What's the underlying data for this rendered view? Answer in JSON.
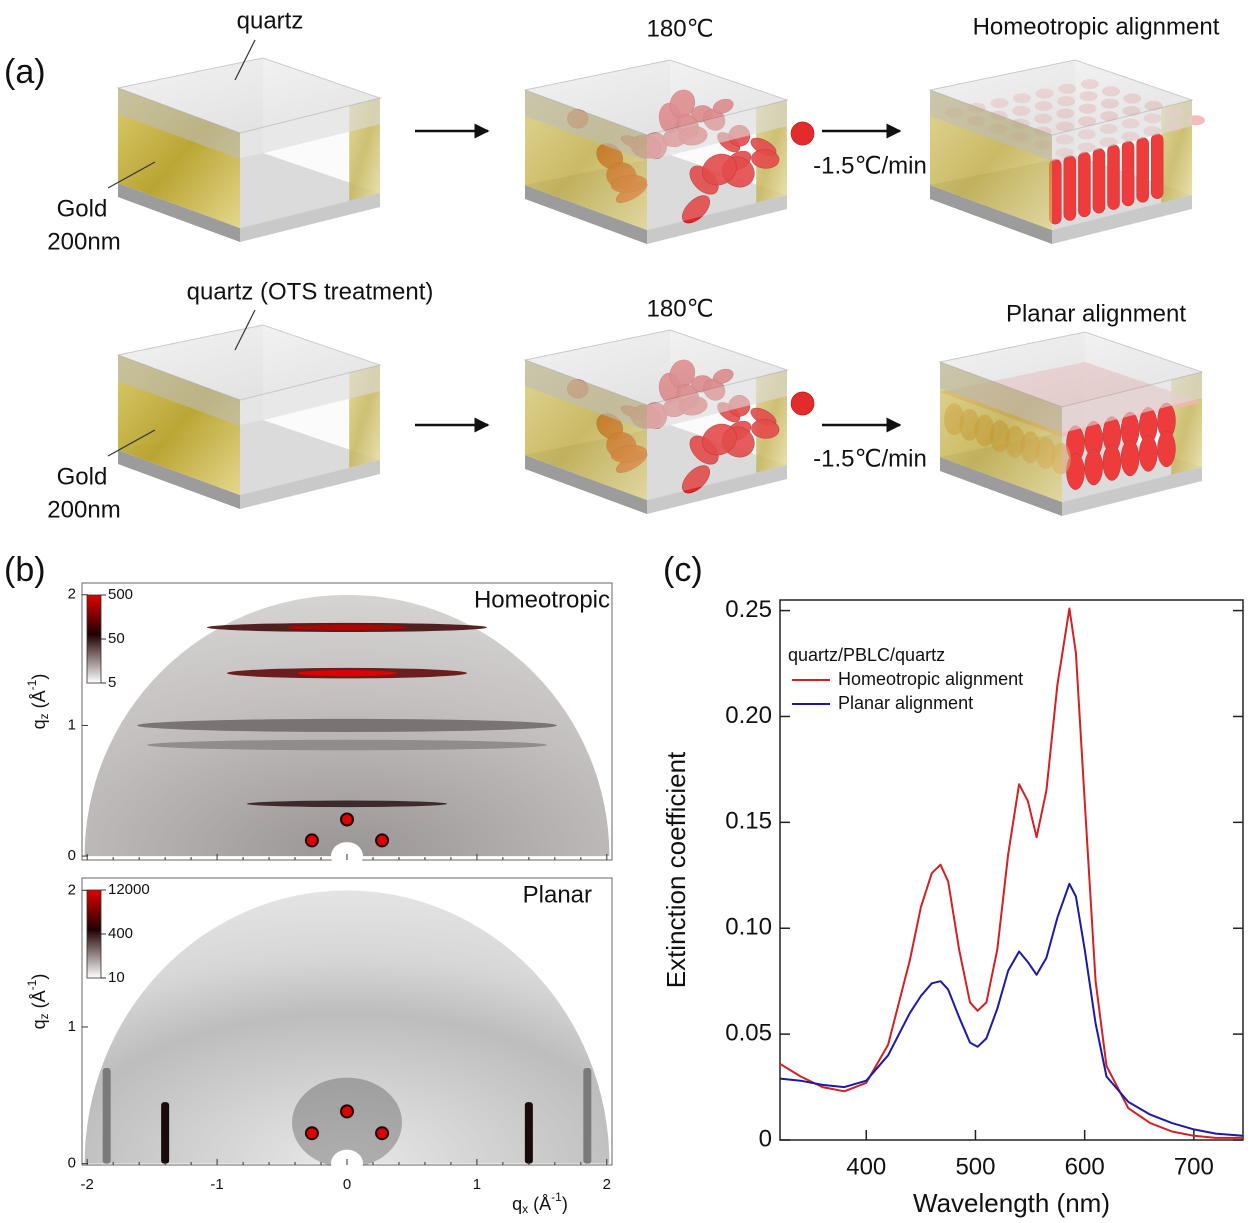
{
  "panel_a": {
    "label": "(a)",
    "row1": {
      "top_label": "quartz",
      "side_label_1": "Gold",
      "side_label_2": "200nm",
      "heat_label": "180℃",
      "rate_label": "-1.5℃/min",
      "result_label": "Homeotropic alignment"
    },
    "row2": {
      "top_label": "quartz (OTS treatment)",
      "side_label_1": "Gold",
      "side_label_2": "200nm",
      "heat_label": "180℃",
      "rate_label": "-1.5℃/min",
      "result_label": "Planar alignment"
    }
  },
  "panel_b": {
    "label": "(b)",
    "xlim": [
      -2.04,
      2.04
    ],
    "xticks": [
      -2,
      -1,
      0,
      1,
      2
    ],
    "xlabel": {
      "base": "q",
      "sub": "x",
      "unit": " (Å",
      "sup": "-1",
      "close": ")"
    },
    "ylabel": {
      "base": "q",
      "sub": "z",
      "unit": " (Å",
      "sup": "-1",
      "close": ")"
    },
    "plots": [
      {
        "title": "Homeotropic",
        "ylim": [
          -0.03,
          2.09
        ],
        "yticks": [
          0,
          1,
          2
        ],
        "colorbar_labels": [
          500,
          50,
          5
        ]
      },
      {
        "title": "Planar",
        "ylim": [
          -0.01,
          2.09
        ],
        "yticks": [
          0,
          1,
          2
        ],
        "colorbar_labels": [
          12000,
          400,
          10
        ]
      }
    ]
  },
  "chart_data": {
    "type": "line",
    "label": "(c)",
    "xlabel": "Wavelength (nm)",
    "ylabel": "Extinction coefficient",
    "legend_title": "quartz/PBLC/quartz",
    "xlim": [
      321,
      745
    ],
    "ylim": [
      0,
      0.255
    ],
    "xticks": [
      400,
      500,
      600,
      700
    ],
    "yticks": [
      0,
      0.05,
      {
        "value": 0.1,
        "label": "0.10"
      },
      0.15,
      {
        "value": 0.2,
        "label": "0.20"
      },
      0.25
    ],
    "x": [
      321,
      340,
      360,
      380,
      400,
      420,
      440,
      450,
      460,
      468,
      475,
      485,
      495,
      502,
      510,
      520,
      530,
      540,
      548,
      556,
      565,
      575,
      586,
      592,
      600,
      610,
      620,
      640,
      660,
      680,
      700,
      720,
      745
    ],
    "series": [
      {
        "name": "Homeotropic alignment",
        "color": "#d42020",
        "values": [
          0.036,
          0.03,
          0.025,
          0.023,
          0.027,
          0.045,
          0.085,
          0.11,
          0.126,
          0.13,
          0.122,
          0.09,
          0.065,
          0.061,
          0.065,
          0.09,
          0.135,
          0.168,
          0.16,
          0.143,
          0.165,
          0.215,
          0.251,
          0.23,
          0.16,
          0.075,
          0.035,
          0.015,
          0.008,
          0.004,
          0.002,
          0.001,
          0.001
        ]
      },
      {
        "name": "Planar alignment",
        "color": "#1a1aa8",
        "values": [
          0.029,
          0.028,
          0.026,
          0.025,
          0.028,
          0.04,
          0.06,
          0.068,
          0.074,
          0.075,
          0.071,
          0.058,
          0.046,
          0.044,
          0.048,
          0.062,
          0.08,
          0.089,
          0.084,
          0.078,
          0.086,
          0.105,
          0.121,
          0.115,
          0.09,
          0.055,
          0.03,
          0.018,
          0.012,
          0.008,
          0.005,
          0.003,
          0.002
        ]
      }
    ]
  }
}
